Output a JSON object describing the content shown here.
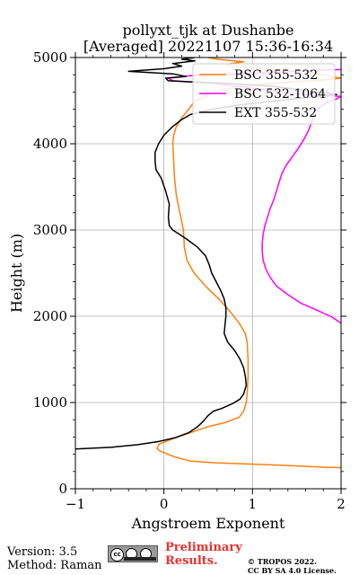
{
  "chart_data": {
    "type": "line",
    "title_line1": "pollyxt_tjk at Dushanbe",
    "title_line2": "[Averaged] 20221107 15:36-16:34",
    "xlabel": "Angstroem Exponent",
    "ylabel": "Height (m)",
    "xlim": [
      -1,
      2
    ],
    "ylim": [
      0,
      5000
    ],
    "xticks": [
      -1,
      0,
      1,
      2
    ],
    "yticks": [
      0,
      1000,
      2000,
      3000,
      4000,
      5000
    ],
    "grid": true,
    "legend_position": "top-right",
    "series": [
      {
        "name": "BSC 355-532",
        "color": "#ff7f0e",
        "points": [
          [
            2.0,
            245
          ],
          [
            1.8,
            250
          ],
          [
            1.4,
            270
          ],
          [
            1.0,
            285
          ],
          [
            0.6,
            300
          ],
          [
            0.3,
            320
          ],
          [
            0.12,
            370
          ],
          [
            -0.05,
            440
          ],
          [
            -0.08,
            470
          ],
          [
            -0.05,
            520
          ],
          [
            0.1,
            580
          ],
          [
            0.3,
            650
          ],
          [
            0.5,
            720
          ],
          [
            0.7,
            770
          ],
          [
            0.85,
            830
          ],
          [
            0.9,
            900
          ],
          [
            0.93,
            1000
          ],
          [
            0.94,
            1100
          ],
          [
            0.95,
            1300
          ],
          [
            0.95,
            1500
          ],
          [
            0.94,
            1700
          ],
          [
            0.92,
            1800
          ],
          [
            0.85,
            1920
          ],
          [
            0.75,
            2050
          ],
          [
            0.62,
            2200
          ],
          [
            0.47,
            2350
          ],
          [
            0.34,
            2500
          ],
          [
            0.26,
            2650
          ],
          [
            0.23,
            2800
          ],
          [
            0.22,
            3000
          ],
          [
            0.18,
            3200
          ],
          [
            0.14,
            3400
          ],
          [
            0.12,
            3600
          ],
          [
            0.11,
            3800
          ],
          [
            0.1,
            4000
          ],
          [
            0.11,
            4100
          ],
          [
            0.14,
            4200
          ],
          [
            0.2,
            4300
          ],
          [
            0.28,
            4400
          ],
          [
            0.35,
            4500
          ],
          [
            0.5,
            4560
          ],
          [
            0.65,
            4620
          ],
          [
            0.82,
            4660
          ],
          [
            1.1,
            4690
          ],
          [
            1.5,
            4720
          ],
          [
            1.8,
            4740
          ],
          [
            2.0,
            4760
          ],
          [
            1.7,
            4820
          ],
          [
            1.3,
            4860
          ],
          [
            1.0,
            4880
          ],
          [
            0.8,
            4900
          ],
          [
            0.7,
            4920
          ],
          [
            0.9,
            4950
          ],
          [
            0.6,
            4980
          ],
          [
            0.5,
            5000
          ]
        ]
      },
      {
        "name": "BSC 532-1064",
        "color": "#ff00ff",
        "points": [
          [
            2.0,
            1920
          ],
          [
            1.9,
            1990
          ],
          [
            1.75,
            2060
          ],
          [
            1.55,
            2150
          ],
          [
            1.4,
            2250
          ],
          [
            1.27,
            2350
          ],
          [
            1.2,
            2450
          ],
          [
            1.15,
            2550
          ],
          [
            1.12,
            2650
          ],
          [
            1.11,
            2750
          ],
          [
            1.11,
            2850
          ],
          [
            1.12,
            2950
          ],
          [
            1.14,
            3050
          ],
          [
            1.17,
            3150
          ],
          [
            1.2,
            3250
          ],
          [
            1.24,
            3350
          ],
          [
            1.27,
            3450
          ],
          [
            1.3,
            3550
          ],
          [
            1.33,
            3650
          ],
          [
            1.38,
            3750
          ],
          [
            1.45,
            3850
          ],
          [
            1.52,
            3950
          ],
          [
            1.58,
            4050
          ],
          [
            1.63,
            4150
          ],
          [
            1.67,
            4250
          ],
          [
            1.7,
            4350
          ],
          [
            1.75,
            4420
          ],
          [
            1.85,
            4480
          ],
          [
            1.95,
            4520
          ],
          [
            2.0,
            4550
          ],
          [
            1.7,
            4560
          ],
          [
            1.3,
            4600
          ],
          [
            0.9,
            4660
          ],
          [
            0.55,
            4700
          ],
          [
            0.1,
            4730
          ],
          [
            0.05,
            4760
          ],
          [
            0.3,
            4790
          ],
          [
            0.8,
            4810
          ],
          [
            1.3,
            4830
          ],
          [
            1.7,
            4850
          ],
          [
            2.0,
            4860
          ]
        ]
      },
      {
        "name": "EXT 355-532",
        "color": "#000000",
        "points": [
          [
            -1.0,
            460
          ],
          [
            -0.6,
            480
          ],
          [
            -0.3,
            510
          ],
          [
            -0.05,
            550
          ],
          [
            0.12,
            590
          ],
          [
            0.28,
            650
          ],
          [
            0.38,
            720
          ],
          [
            0.45,
            790
          ],
          [
            0.5,
            850
          ],
          [
            0.56,
            900
          ],
          [
            0.65,
            930
          ],
          [
            0.78,
            990
          ],
          [
            0.86,
            1040
          ],
          [
            0.9,
            1100
          ],
          [
            0.93,
            1200
          ],
          [
            0.92,
            1300
          ],
          [
            0.9,
            1400
          ],
          [
            0.86,
            1500
          ],
          [
            0.8,
            1600
          ],
          [
            0.72,
            1700
          ],
          [
            0.68,
            1800
          ],
          [
            0.69,
            1900
          ],
          [
            0.7,
            2000
          ],
          [
            0.7,
            2100
          ],
          [
            0.68,
            2200
          ],
          [
            0.64,
            2300
          ],
          [
            0.59,
            2400
          ],
          [
            0.54,
            2500
          ],
          [
            0.51,
            2600
          ],
          [
            0.47,
            2700
          ],
          [
            0.38,
            2800
          ],
          [
            0.25,
            2900
          ],
          [
            0.1,
            3000
          ],
          [
            0.06,
            3050
          ],
          [
            0.05,
            3150
          ],
          [
            0.06,
            3300
          ],
          [
            0.02,
            3450
          ],
          [
            -0.03,
            3600
          ],
          [
            -0.09,
            3700
          ],
          [
            -0.1,
            3800
          ],
          [
            -0.1,
            3900
          ],
          [
            -0.06,
            4000
          ],
          [
            0.0,
            4100
          ],
          [
            0.1,
            4200
          ],
          [
            0.2,
            4280
          ],
          [
            0.3,
            4340
          ],
          [
            0.55,
            4400
          ],
          [
            0.85,
            4450
          ],
          [
            1.2,
            4490
          ],
          [
            1.55,
            4530
          ],
          [
            1.95,
            4570
          ],
          [
            1.6,
            4620
          ],
          [
            1.2,
            4670
          ],
          [
            0.7,
            4700
          ],
          [
            0.25,
            4720
          ],
          [
            0.05,
            4730
          ],
          [
            0.02,
            4760
          ],
          [
            0.25,
            4780
          ],
          [
            0.1,
            4810
          ],
          [
            -0.4,
            4840
          ],
          [
            0.0,
            4870
          ],
          [
            0.2,
            4900
          ],
          [
            0.1,
            4930
          ],
          [
            0.35,
            4960
          ],
          [
            0.2,
            4980
          ],
          [
            0.35,
            5000
          ]
        ]
      }
    ]
  },
  "footer": {
    "version": "Version: 3.5",
    "method": "Method: Raman",
    "badge": "cc",
    "preliminary": "Preliminary",
    "results": "Results.",
    "copyright1": "© TROPOS 2022.",
    "copyright2": "CC BY SA 4.0 License."
  }
}
